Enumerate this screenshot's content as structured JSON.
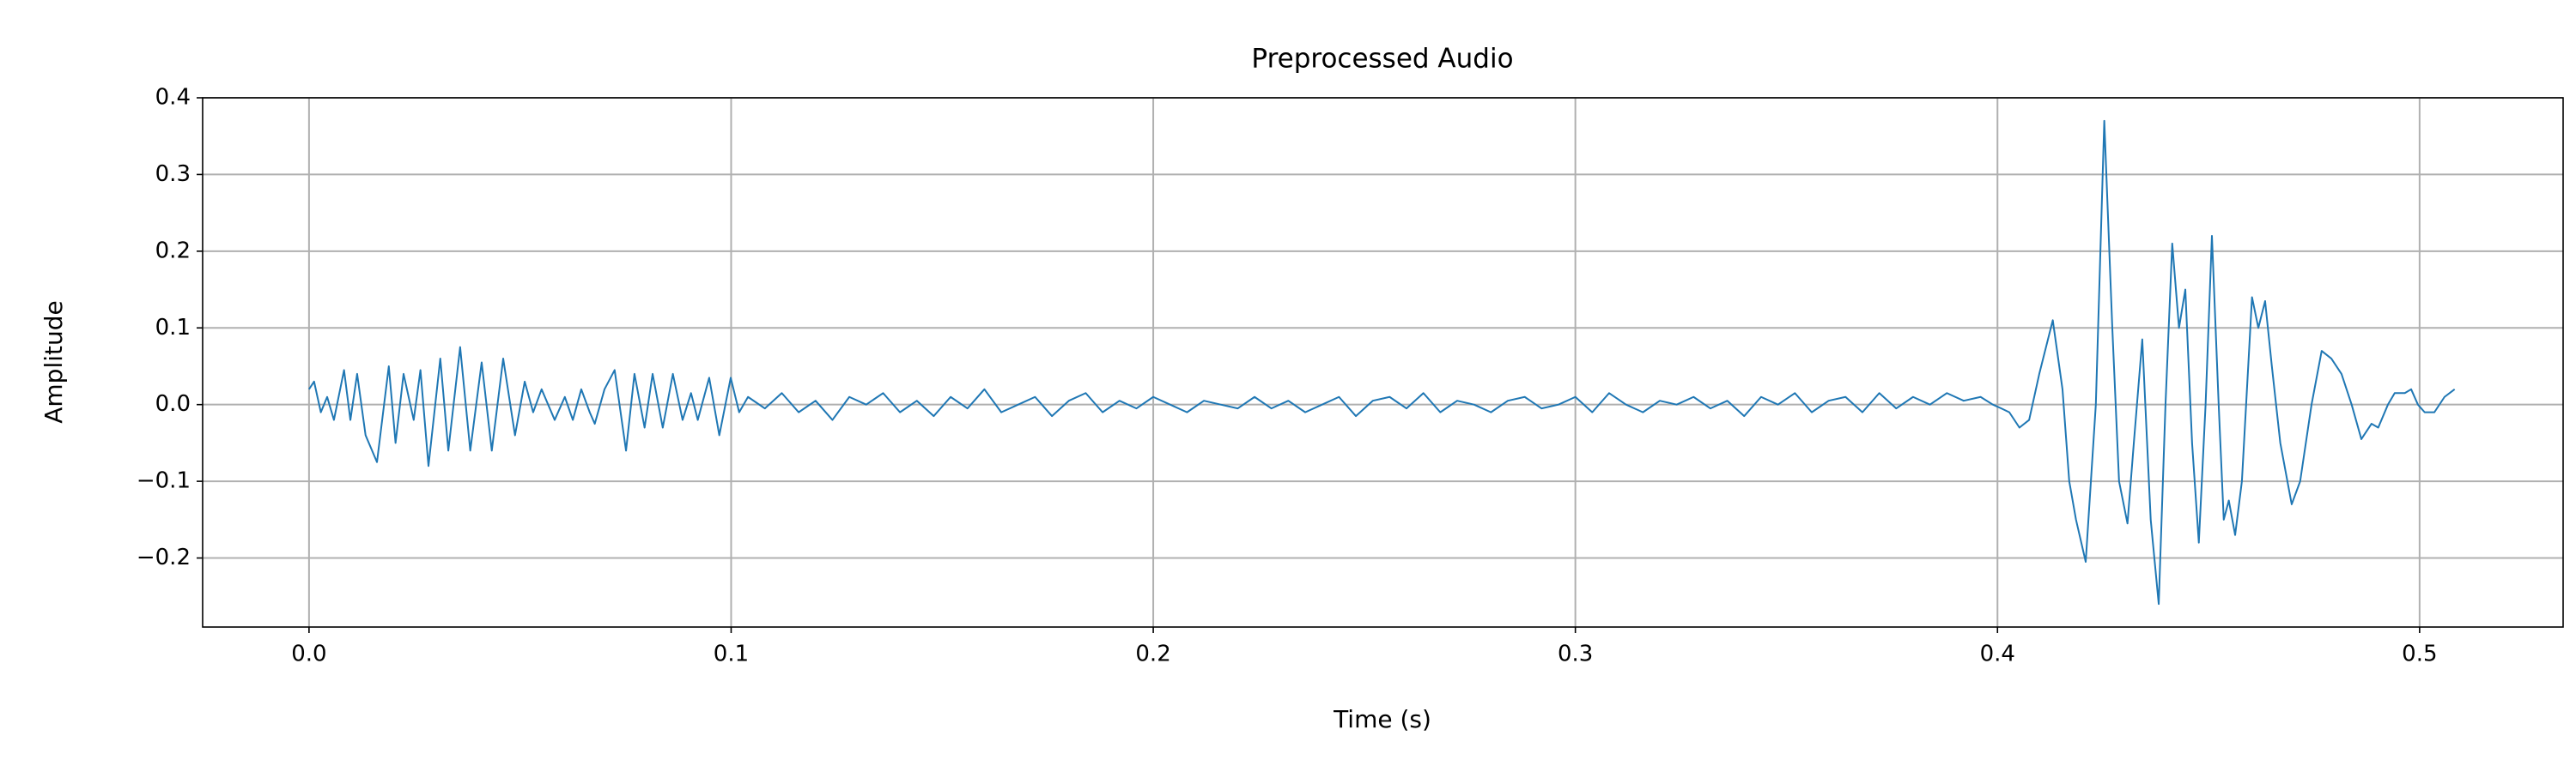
{
  "chart_data": {
    "type": "line",
    "title": "Preprocessed Audio",
    "x_label": "Time (s)",
    "y_label": "Amplitude",
    "color": "#1f77b4",
    "grid": true,
    "xlim": [
      -0.0252,
      0.534
    ],
    "ylim": [
      -0.29,
      0.4
    ],
    "xticks": [
      {
        "value": 0,
        "label": "0.0"
      },
      0.1,
      0.2,
      0.3,
      0.4,
      0.5
    ],
    "yticks": [
      {
        "value": -0.2,
        "label": "−0.2"
      },
      {
        "value": -0.1,
        "label": "−0.1"
      },
      {
        "value": 0,
        "label": "0.0"
      },
      0.1,
      0.2,
      0.3,
      0.4
    ],
    "x": [
      0.0,
      0.0012,
      0.0028,
      0.0043,
      0.0059,
      0.0083,
      0.0098,
      0.0114,
      0.0134,
      0.0161,
      0.0189,
      0.0205,
      0.0224,
      0.0248,
      0.0264,
      0.0283,
      0.0311,
      0.033,
      0.0358,
      0.0382,
      0.0409,
      0.0433,
      0.046,
      0.0488,
      0.0511,
      0.0531,
      0.0551,
      0.0582,
      0.0606,
      0.0625,
      0.0645,
      0.0665,
      0.0677,
      0.07,
      0.0724,
      0.0751,
      0.0771,
      0.0795,
      0.0814,
      0.0838,
      0.0862,
      0.0885,
      0.0905,
      0.0921,
      0.0948,
      0.0972,
      0.0999,
      0.1019,
      0.104,
      0.108,
      0.112,
      0.116,
      0.12,
      0.124,
      0.128,
      0.132,
      0.136,
      0.14,
      0.144,
      0.148,
      0.152,
      0.156,
      0.16,
      0.164,
      0.168,
      0.172,
      0.176,
      0.18,
      0.184,
      0.188,
      0.192,
      0.196,
      0.2,
      0.204,
      0.208,
      0.212,
      0.216,
      0.22,
      0.224,
      0.228,
      0.232,
      0.236,
      0.24,
      0.244,
      0.248,
      0.252,
      0.256,
      0.26,
      0.264,
      0.268,
      0.272,
      0.276,
      0.28,
      0.284,
      0.288,
      0.292,
      0.296,
      0.3,
      0.304,
      0.308,
      0.312,
      0.316,
      0.32,
      0.324,
      0.328,
      0.332,
      0.336,
      0.34,
      0.344,
      0.348,
      0.352,
      0.356,
      0.36,
      0.364,
      0.368,
      0.372,
      0.376,
      0.38,
      0.384,
      0.388,
      0.392,
      0.396,
      0.3989,
      0.4009,
      0.4028,
      0.4052,
      0.4075,
      0.4099,
      0.4131,
      0.4154,
      0.417,
      0.4186,
      0.4209,
      0.4233,
      0.4253,
      0.4272,
      0.4288,
      0.4308,
      0.4323,
      0.4343,
      0.4363,
      0.4382,
      0.4398,
      0.4414,
      0.443,
      0.4445,
      0.4461,
      0.4477,
      0.4493,
      0.4508,
      0.4524,
      0.4536,
      0.4548,
      0.4563,
      0.4579,
      0.4603,
      0.4618,
      0.4634,
      0.465,
      0.467,
      0.4697,
      0.4717,
      0.4744,
      0.4768,
      0.4791,
      0.4815,
      0.4839,
      0.4862,
      0.4886,
      0.4902,
      0.4925,
      0.4941,
      0.4965,
      0.498,
      0.4996,
      0.5012,
      0.5035,
      0.5059,
      0.5083
    ],
    "values": [
      0.02,
      0.03,
      -0.01,
      0.01,
      -0.02,
      0.045,
      -0.02,
      0.04,
      -0.04,
      -0.075,
      0.05,
      -0.05,
      0.04,
      -0.02,
      0.045,
      -0.08,
      0.06,
      -0.06,
      0.075,
      -0.06,
      0.055,
      -0.06,
      0.06,
      -0.04,
      0.03,
      -0.01,
      0.02,
      -0.02,
      0.01,
      -0.02,
      0.02,
      -0.01,
      -0.025,
      0.02,
      0.045,
      -0.06,
      0.04,
      -0.03,
      0.04,
      -0.03,
      0.04,
      -0.02,
      0.015,
      -0.02,
      0.035,
      -0.04,
      0.035,
      -0.01,
      0.01,
      -0.005,
      0.015,
      -0.01,
      0.005,
      -0.02,
      0.01,
      0.0,
      0.015,
      -0.01,
      0.005,
      -0.015,
      0.01,
      -0.005,
      0.02,
      -0.01,
      0.0,
      0.01,
      -0.015,
      0.005,
      0.015,
      -0.01,
      0.005,
      -0.005,
      0.01,
      0.0,
      -0.01,
      0.005,
      0.0,
      -0.005,
      0.01,
      -0.005,
      0.005,
      -0.01,
      0.0,
      0.01,
      -0.015,
      0.005,
      0.01,
      -0.005,
      0.015,
      -0.01,
      0.005,
      0.0,
      -0.01,
      0.005,
      0.01,
      -0.005,
      0.0,
      0.01,
      -0.01,
      0.015,
      0.0,
      -0.01,
      0.005,
      0.0,
      0.01,
      -0.005,
      0.005,
      -0.015,
      0.01,
      0.0,
      0.015,
      -0.01,
      0.005,
      0.01,
      -0.01,
      0.015,
      -0.005,
      0.01,
      0.0,
      0.015,
      0.005,
      0.01,
      0.0,
      -0.005,
      -0.01,
      -0.03,
      -0.02,
      0.04,
      0.11,
      0.02,
      -0.1,
      -0.15,
      -0.205,
      0.0,
      0.37,
      0.1,
      -0.1,
      -0.155,
      -0.05,
      0.085,
      -0.15,
      -0.26,
      0.0,
      0.21,
      0.1,
      0.15,
      -0.05,
      -0.18,
      0.0,
      0.22,
      0.0,
      -0.15,
      -0.125,
      -0.17,
      -0.1,
      0.14,
      0.1,
      0.135,
      0.05,
      -0.05,
      -0.13,
      -0.1,
      0.0,
      0.07,
      0.06,
      0.04,
      0.0,
      -0.045,
      -0.025,
      -0.03,
      0.0,
      0.015,
      0.015,
      0.02,
      0.0,
      -0.01,
      -0.01,
      0.01,
      0.02
    ]
  }
}
